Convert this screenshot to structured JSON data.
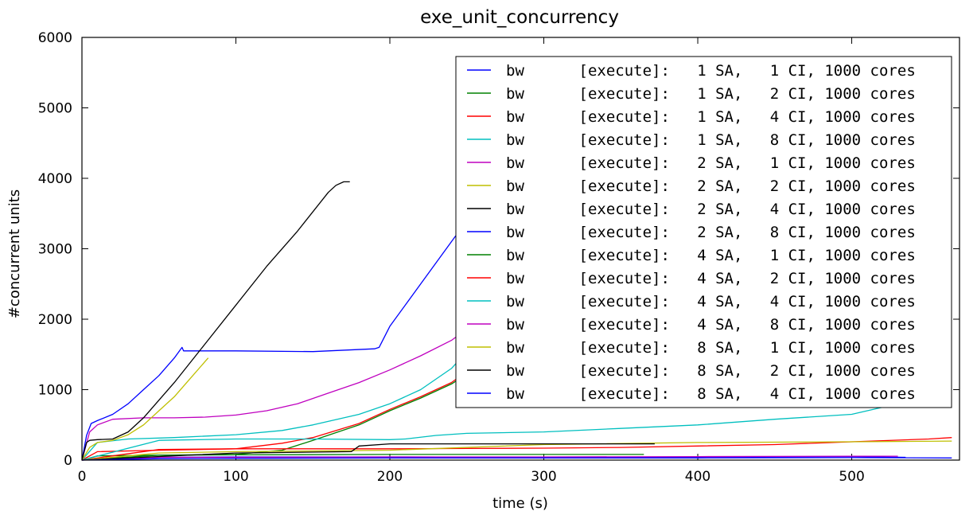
{
  "chart_data": {
    "type": "line",
    "title": "exe_unit_concurrency",
    "xlabel": "time (s)",
    "ylabel": "#concurrent units",
    "xlim": [
      0,
      570
    ],
    "ylim": [
      0,
      6000
    ],
    "xticks": [
      0,
      100,
      200,
      300,
      400,
      500
    ],
    "yticks": [
      0,
      1000,
      2000,
      3000,
      4000,
      5000,
      6000
    ],
    "xtick_labels": [
      "0",
      "100",
      "200",
      "300",
      "400",
      "500"
    ],
    "ytick_labels": [
      "0",
      "1000",
      "2000",
      "3000",
      "4000",
      "5000",
      "6000"
    ],
    "legend_position": "top-right",
    "series": [
      {
        "name": "bw      [execute]:   1 SA,   1 CI, 1000 cores",
        "color": "#0000ff",
        "x": [
          0,
          3,
          6,
          10,
          20,
          30,
          40,
          50,
          60,
          65,
          66,
          100,
          150,
          190,
          193,
          200,
          220,
          240,
          245
        ],
        "y": [
          0,
          350,
          520,
          560,
          650,
          800,
          1000,
          1200,
          1450,
          1600,
          1550,
          1550,
          1540,
          1580,
          1600,
          1900,
          2500,
          3100,
          3250
        ]
      },
      {
        "name": "bw      [execute]:   1 SA,   2 CI, 1000 cores",
        "color": "#008000",
        "x": [
          0,
          10,
          50,
          100,
          130,
          150,
          180,
          200,
          220,
          240,
          245
        ],
        "y": [
          0,
          60,
          70,
          80,
          140,
          280,
          500,
          700,
          880,
          1080,
          1150
        ]
      },
      {
        "name": "bw      [execute]:   1 SA,   4 CI, 1000 cores",
        "color": "#ff0000",
        "x": [
          0,
          10,
          50,
          100,
          130,
          150,
          180,
          200,
          220,
          240,
          245
        ],
        "y": [
          0,
          120,
          140,
          160,
          240,
          320,
          520,
          720,
          900,
          1100,
          1180
        ]
      },
      {
        "name": "bw      [execute]:   1 SA,   8 CI, 1000 cores",
        "color": "#00bfbf",
        "x": [
          0,
          10,
          30,
          60,
          100,
          130,
          150,
          180,
          200,
          220,
          240,
          245
        ],
        "y": [
          0,
          250,
          300,
          320,
          360,
          420,
          500,
          650,
          800,
          1000,
          1300,
          1420
        ]
      },
      {
        "name": "bw      [execute]:   2 SA,   1 CI, 1000 cores",
        "color": "#bf00bf",
        "x": [
          0,
          5,
          10,
          20,
          40,
          60,
          80,
          100,
          120,
          140,
          160,
          180,
          200,
          220,
          240,
          245
        ],
        "y": [
          0,
          400,
          500,
          580,
          600,
          600,
          610,
          640,
          700,
          800,
          950,
          1100,
          1280,
          1480,
          1700,
          1780
        ]
      },
      {
        "name": "bw      [execute]:   2 SA,   2 CI, 1000 cores",
        "color": "#bfbf00",
        "x": [
          0,
          5,
          10,
          20,
          30,
          40,
          50,
          60,
          70,
          80,
          82
        ],
        "y": [
          0,
          180,
          250,
          280,
          360,
          500,
          700,
          900,
          1150,
          1400,
          1450
        ]
      },
      {
        "name": "bw      [execute]:   2 SA,   4 CI, 1000 cores",
        "color": "#000000",
        "x": [
          0,
          3,
          5,
          10,
          20,
          30,
          40,
          60,
          80,
          100,
          120,
          140,
          160,
          165,
          170,
          174
        ],
        "y": [
          0,
          250,
          280,
          290,
          300,
          400,
          600,
          1100,
          1650,
          2200,
          2750,
          3250,
          3800,
          3900,
          3950,
          3950
        ]
      },
      {
        "name": "bw      [execute]:   2 SA,   8 CI, 1000 cores",
        "color": "#0000ff",
        "x": [
          0,
          50,
          100,
          200,
          300,
          400,
          500,
          535
        ],
        "y": [
          0,
          40,
          45,
          45,
          40,
          45,
          50,
          40
        ]
      },
      {
        "name": "bw      [execute]:   4 SA,   1 CI, 1000 cores",
        "color": "#008000",
        "x": [
          0,
          50,
          100,
          200,
          300,
          365
        ],
        "y": [
          0,
          70,
          75,
          80,
          80,
          80
        ]
      },
      {
        "name": "bw      [execute]:   4 SA,   2 CI, 1000 cores",
        "color": "#ff0000",
        "x": [
          0,
          50,
          100,
          150,
          200,
          250,
          300,
          350,
          400,
          450,
          500,
          550,
          565
        ],
        "y": [
          0,
          150,
          160,
          160,
          160,
          165,
          170,
          180,
          200,
          220,
          260,
          300,
          320
        ]
      },
      {
        "name": "bw      [execute]:   4 SA,   4 CI, 1000 cores",
        "color": "#00bfbf",
        "x": [
          0,
          50,
          100,
          150,
          200,
          210,
          230,
          250,
          300,
          350,
          400,
          450,
          500,
          520,
          545
        ],
        "y": [
          0,
          280,
          300,
          300,
          290,
          300,
          350,
          380,
          400,
          450,
          500,
          580,
          650,
          750,
          760
        ]
      },
      {
        "name": "bw      [execute]:   4 SA,   8 CI, 1000 cores",
        "color": "#bf00bf",
        "x": [
          0,
          50,
          100,
          200,
          300,
          400,
          500,
          530
        ],
        "y": [
          0,
          40,
          40,
          45,
          45,
          50,
          55,
          55
        ]
      },
      {
        "name": "bw      [execute]:   8 SA,   1 CI, 1000 cores",
        "color": "#bfbf00",
        "x": [
          0,
          50,
          100,
          200,
          300,
          400,
          500,
          565
        ],
        "y": [
          0,
          100,
          120,
          140,
          220,
          250,
          260,
          270
        ]
      },
      {
        "name": "bw      [execute]:   8 SA,   2 CI, 1000 cores",
        "color": "#000000",
        "x": [
          0,
          100,
          175,
          180,
          200,
          250,
          300,
          372
        ],
        "y": [
          0,
          100,
          120,
          200,
          230,
          230,
          230,
          230
        ]
      },
      {
        "name": "bw      [execute]:   8 SA,   4 CI, 1000 cores",
        "color": "#0000ff",
        "x": [
          0,
          50,
          100,
          200,
          300,
          400,
          500,
          565
        ],
        "y": [
          0,
          20,
          25,
          30,
          30,
          30,
          35,
          30
        ]
      }
    ]
  }
}
